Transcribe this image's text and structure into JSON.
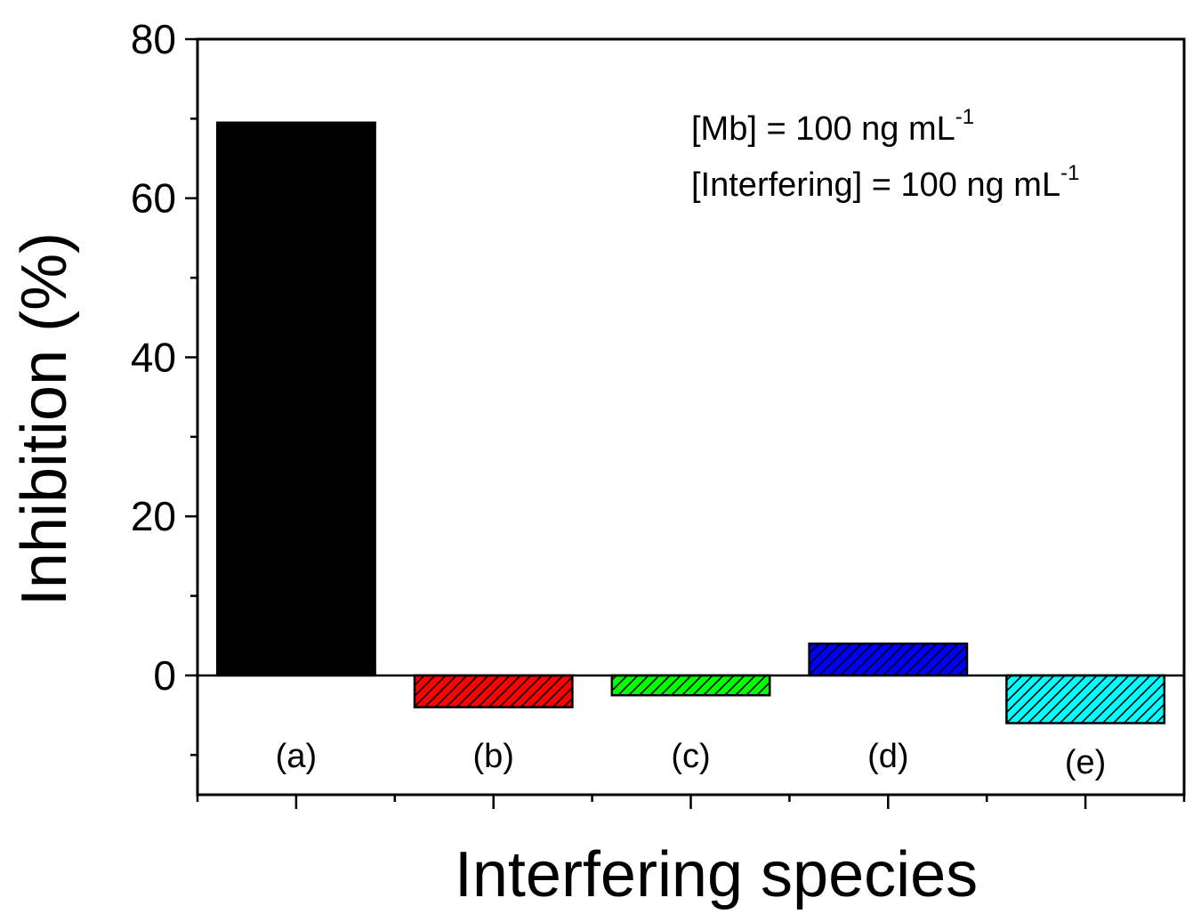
{
  "chart_data": {
    "type": "bar",
    "title": "",
    "xlabel": "Interfering species",
    "ylabel": "Inhibition (%)",
    "ylim": [
      -15,
      80
    ],
    "yticks": [
      0,
      20,
      40,
      60,
      80
    ],
    "grid": false,
    "categories": [
      "(a)",
      "(b)",
      "(c)",
      "(d)",
      "(e)"
    ],
    "values": [
      69.5,
      -4.0,
      -2.5,
      4.0,
      -6.0
    ],
    "colors": [
      "#000000",
      "#ff0000",
      "#00ff00",
      "#0000ff",
      "#00ffff"
    ],
    "patterns": [
      "solid",
      "hatch",
      "hatch",
      "hatch",
      "hatch"
    ],
    "annotations": [
      {
        "text": "[Mb] = 100 ng mL",
        "superscript": "-1"
      },
      {
        "text": "[Interfering] = 100 ng mL",
        "superscript": "-1"
      }
    ]
  }
}
